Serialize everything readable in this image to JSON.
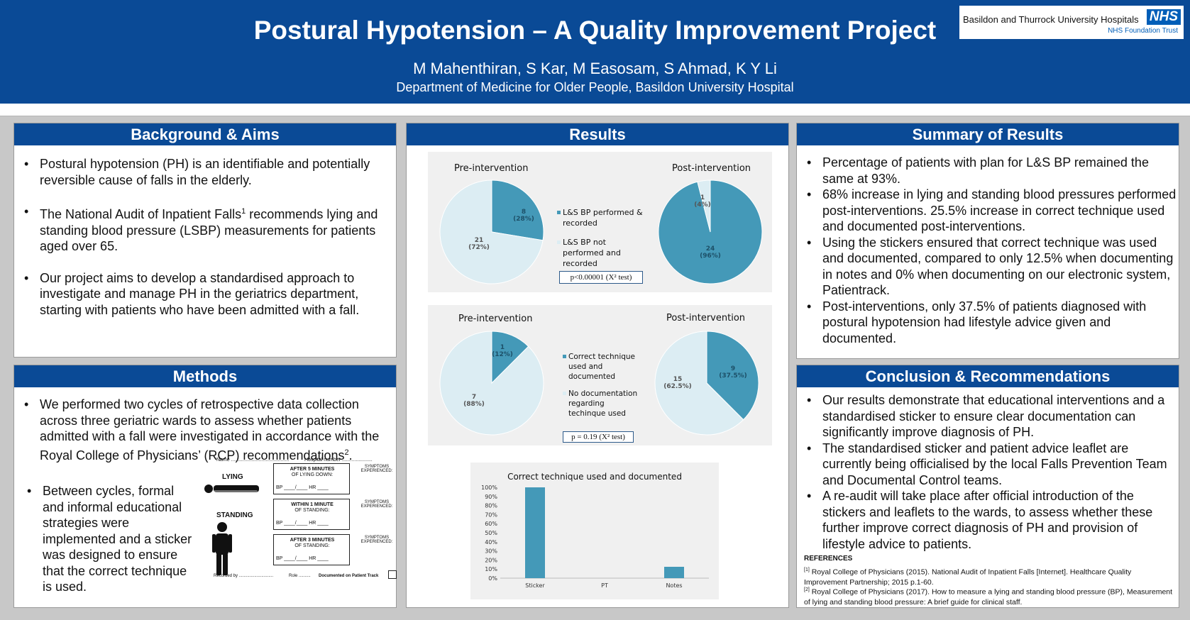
{
  "header": {
    "title": "Postural Hypotension – A Quality Improvement Project",
    "authors": "M Mahenthiran, S Kar, M Easosam, S Ahmad, K Y Li",
    "department": "Department of Medicine for Older People, Basildon University Hospital",
    "logo": {
      "line1": "Basildon and Thurrock University Hospitals",
      "badge": "NHS",
      "line2": "NHS Foundation Trust"
    }
  },
  "background": {
    "title": "Background & Aims",
    "bullets": [
      "Postural hypotension (PH) is an identifiable and potentially reversible cause of falls in the elderly.",
      "The National Audit of Inpatient Falls",
      "Our project aims to develop a standardised approach to investigate and manage PH in the geriatrics department, starting with patients who have been admitted with a fall."
    ],
    "falls_sup": "1",
    "falls_rest": " recommends lying and standing blood pressure (LSBP) measurements for patients aged over 65."
  },
  "methods": {
    "title": "Methods",
    "bullet1": "We performed two cycles of retrospective data collection across three geriatric wards to assess whether patients admitted with a fall were investigated in accordance with the Royal College of Physicians’ (RCP) recommendations",
    "bullet1_sup": "2",
    "bullet1_end": ".",
    "bullet2": "Between cycles, formal and informal educational strategies were implemented and a sticker was designed to ensure that the correct technique is used.",
    "sticker": {
      "name": "Name ..........................................",
      "hospital": "Hospital number ......................",
      "lying": "LYING",
      "standing": "STANDING",
      "box1_title": "AFTER 5 MINUTES",
      "box1_sub": "OF LYING DOWN:",
      "box2_title": "WITHIN 1 MINUTE",
      "box2_sub": "OF STANDING:",
      "box3_title": "AFTER 3 MINUTES",
      "box3_sub": "OF STANDING:",
      "bp": "BP ____/____    HR ____",
      "symptoms": "SYMPTOMS EXPERIENCED:",
      "recorded": "Recorded by .............................",
      "role": "Role ..........",
      "documented": "Documented on Patient Track"
    }
  },
  "results": {
    "title": "Results",
    "pie1": {
      "pre_label": "Pre-intervention",
      "post_label": "Post-intervention",
      "legend": [
        "L&S BP performed & recorded",
        "L&S BP not performed and recorded"
      ],
      "pre_a": "8",
      "pre_a_pct": "(28%)",
      "pre_b": "21",
      "pre_b_pct": "(72%)",
      "post_a": "24",
      "post_a_pct": "(96%)",
      "post_b": "1",
      "post_b_pct": "(4%)",
      "pvalue": "p<0.00001 (X² test)"
    },
    "pie2": {
      "pre_label": "Pre-intervention",
      "post_label": "Post-intervention",
      "legend": [
        "Correct technique used and documented",
        "No documentation regarding techinque used"
      ],
      "pre_a": "1",
      "pre_a_pct": "(12%)",
      "pre_b": "7",
      "pre_b_pct": "(88%)",
      "post_a": "9",
      "post_a_pct": "(37.5%)",
      "post_b": "15",
      "post_b_pct": "(62.5%)",
      "pvalue": "p = 0.19 (X² test)"
    },
    "bar": {
      "title": "Correct technique used and documented"
    }
  },
  "chart_data": [
    {
      "type": "pie",
      "title": "Pre-intervention",
      "categories": [
        "L&S BP performed & recorded",
        "L&S BP not performed and recorded"
      ],
      "values": [
        8,
        21
      ],
      "colors": [
        "#4499b8",
        "#dcedf3"
      ]
    },
    {
      "type": "pie",
      "title": "Post-intervention",
      "categories": [
        "L&S BP performed & recorded",
        "L&S BP not performed and recorded"
      ],
      "values": [
        24,
        1
      ],
      "colors": [
        "#4499b8",
        "#dcedf3"
      ]
    },
    {
      "type": "pie",
      "title": "Pre-intervention",
      "categories": [
        "Correct technique used and documented",
        "No documentation regarding techinque used"
      ],
      "values": [
        1,
        7
      ],
      "colors": [
        "#4499b8",
        "#dcedf3"
      ]
    },
    {
      "type": "pie",
      "title": "Post-intervention",
      "categories": [
        "Correct technique used and documented",
        "No documentation regarding techinque used"
      ],
      "values": [
        9,
        15
      ],
      "colors": [
        "#4499b8",
        "#dcedf3"
      ]
    },
    {
      "type": "bar",
      "title": "Correct technique used and documented",
      "categories": [
        "Sticker",
        "PT",
        "Notes"
      ],
      "values": [
        100,
        0,
        12.5
      ],
      "yticks": [
        "0%",
        "10%",
        "20%",
        "30%",
        "40%",
        "50%",
        "60%",
        "70%",
        "80%",
        "90%",
        "100%"
      ],
      "ylim": [
        0,
        100
      ],
      "color": "#4499b8"
    }
  ],
  "summary": {
    "title": "Summary of Results",
    "bullets": [
      "Percentage of patients with plan for L&S BP remained the same at 93%.",
      "68% increase in lying and standing blood pressures performed post-interventions. 25.5% increase in correct technique used and documented post-interventions.",
      "Using the stickers ensured that correct technique was used and documented, compared to only 12.5% when documenting in notes and 0% when documenting on our electronic system, Patientrack.",
      "Post-interventions, only 37.5% of patients diagnosed with postural hypotension had lifestyle advice given and documented."
    ]
  },
  "conclusion": {
    "title": "Conclusion & Recommendations",
    "bullets": [
      "Our results demonstrate that educational interventions and a standardised sticker to ensure clear documentation can significantly improve diagnosis of PH.",
      "The standardised sticker and patient advice leaflet are currently being officialised by the local Falls Prevention Team and Documental Control teams.",
      "A re-audit will take place after official introduction of the stickers and leaflets to the wards, to assess whether these further improve correct diagnosis of PH and provision of lifestyle advice to patients."
    ],
    "references_title": "REFERENCES",
    "ref1_mark": "[1]",
    "ref1": " Royal College of Physicians (2015). National Audit of Inpatient Falls [Internet]. Healthcare Quality Improvement Partnership; 2015 p.1-60.",
    "ref2_mark": "[2]",
    "ref2": " Royal College of Physicians (2017). How to measure a lying and standing blood pressure (BP), Measurement of lying and standing blood pressure: A brief guide for clinical staff."
  }
}
